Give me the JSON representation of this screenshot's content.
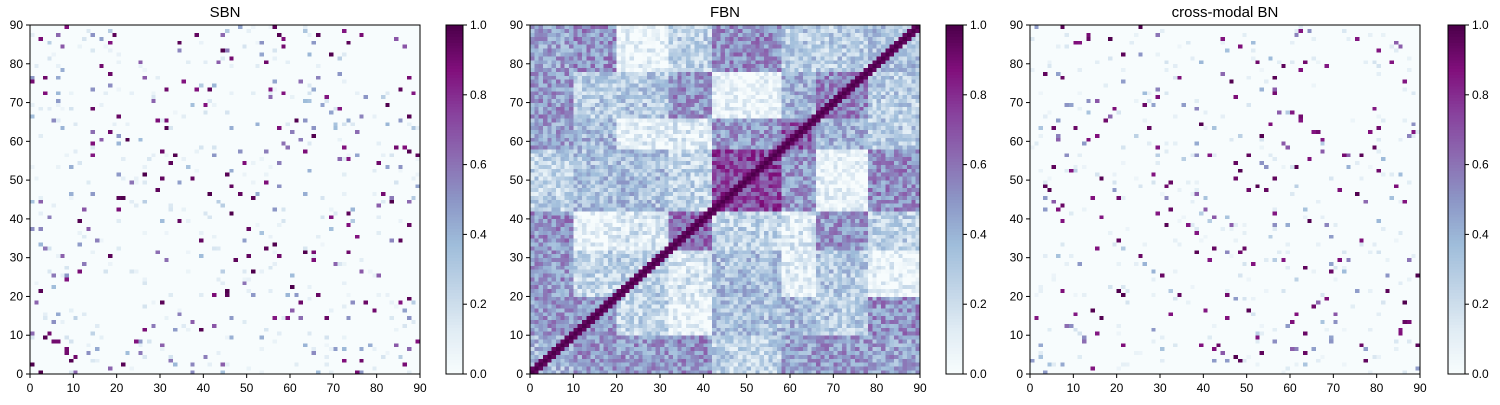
{
  "chart_data": [
    {
      "type": "heatmap",
      "title": "SBN",
      "xlim": [
        0,
        90
      ],
      "ylim": [
        0,
        90
      ],
      "x_ticks": [
        "0",
        "10",
        "20",
        "30",
        "40",
        "50",
        "60",
        "70",
        "80",
        "90"
      ],
      "y_ticks": [
        "0",
        "10",
        "20",
        "30",
        "40",
        "50",
        "60",
        "70",
        "80",
        "90"
      ],
      "colorbar": {
        "range": [
          0.0,
          1.0
        ],
        "ticks": [
          "0.0",
          "0.2",
          "0.4",
          "0.6",
          "0.8",
          "1.0"
        ]
      },
      "grid_size": 90,
      "pattern": "sparse-symmetric",
      "seed": 11
    },
    {
      "type": "heatmap",
      "title": "FBN",
      "xlim": [
        0,
        90
      ],
      "ylim": [
        0,
        90
      ],
      "x_ticks": [
        "0",
        "10",
        "20",
        "30",
        "40",
        "50",
        "60",
        "70",
        "80",
        "90"
      ],
      "y_ticks": [
        "0",
        "10",
        "20",
        "30",
        "40",
        "50",
        "60",
        "70",
        "80",
        "90"
      ],
      "colorbar": {
        "range": [
          0.0,
          1.0
        ],
        "ticks": [
          "0.0",
          "0.2",
          "0.4",
          "0.6",
          "0.8",
          "1.0"
        ]
      },
      "grid_size": 90,
      "pattern": "dense-symmetric-unit-diagonal",
      "seed": 23
    },
    {
      "type": "heatmap",
      "title": "cross-modal BN",
      "xlim": [
        0,
        90
      ],
      "ylim": [
        0,
        90
      ],
      "x_ticks": [
        "0",
        "10",
        "20",
        "30",
        "40",
        "50",
        "60",
        "70",
        "80",
        "90"
      ],
      "y_ticks": [
        "0",
        "10",
        "20",
        "30",
        "40",
        "50",
        "60",
        "70",
        "80",
        "90"
      ],
      "colorbar": {
        "range": [
          0.0,
          1.0
        ],
        "ticks": [
          "0.0",
          "0.2",
          "0.4",
          "0.6",
          "0.8",
          "1.0"
        ]
      },
      "grid_size": 90,
      "pattern": "sparse-symmetric",
      "seed": 37
    }
  ],
  "colormap": {
    "name": "BuPu",
    "stops": [
      "#f7fcfd",
      "#e0ecf4",
      "#bfd3e6",
      "#9ebcda",
      "#8c96c6",
      "#8c6bb1",
      "#88419d",
      "#810f7c",
      "#4d004b"
    ]
  }
}
